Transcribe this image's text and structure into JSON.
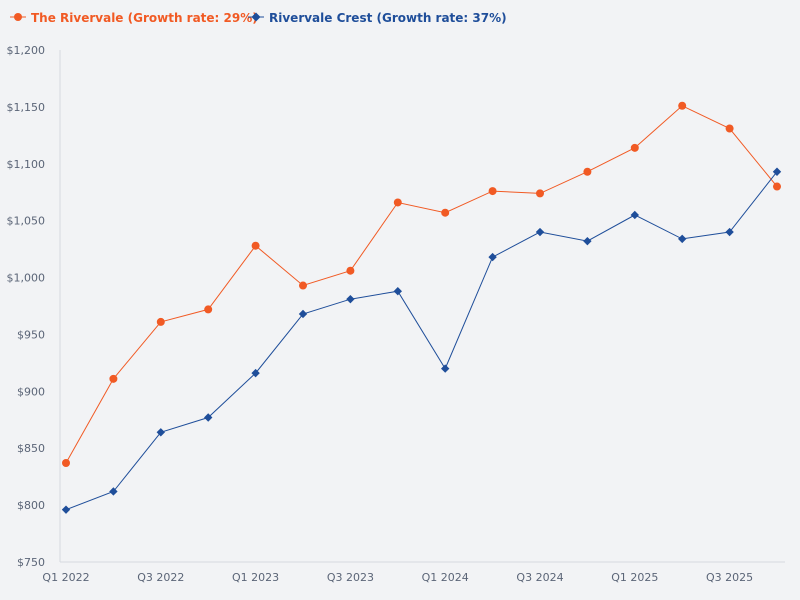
{
  "chart_data": {
    "type": "line",
    "title": "",
    "xlabel": "",
    "ylabel": "",
    "ylim": [
      750,
      1200
    ],
    "yticks": [
      "$750",
      "$800",
      "$850",
      "$900",
      "$950",
      "$1,000",
      "$1,050",
      "$1,100",
      "$1,150",
      "$1,200"
    ],
    "ytick_values": [
      750,
      800,
      850,
      900,
      950,
      1000,
      1050,
      1100,
      1150,
      1200
    ],
    "categories": [
      "Q1 2022",
      "Q2 2022",
      "Q3 2022",
      "Q4 2022",
      "Q1 2023",
      "Q2 2023",
      "Q3 2023",
      "Q4 2023",
      "Q1 2024",
      "Q2 2024",
      "Q3 2024",
      "Q4 2024",
      "Q1 2025",
      "Q2 2025",
      "Q3 2025",
      "Q4 2025"
    ],
    "xtick_labels": [
      "Q1 2022",
      "Q3 2022",
      "Q1 2023",
      "Q3 2023",
      "Q1 2024",
      "Q3 2024",
      "Q1 2025",
      "Q3 2025"
    ],
    "legend_position": "top-left",
    "series": [
      {
        "name": "The Rivervale (Growth rate: 29%)",
        "color": "#f15a24",
        "marker": "circle",
        "values": [
          837,
          911,
          961,
          972,
          1028,
          993,
          1006,
          1066,
          1057,
          1076,
          1074,
          1093,
          1114,
          1151,
          1131,
          1080
        ]
      },
      {
        "name": "Rivervale Crest (Growth rate: 37%)",
        "color": "#1f4e9a",
        "marker": "diamond",
        "values": [
          796,
          812,
          864,
          877,
          916,
          968,
          981,
          988,
          920,
          1018,
          1040,
          1032,
          1055,
          1034,
          1040,
          1093
        ]
      }
    ]
  }
}
